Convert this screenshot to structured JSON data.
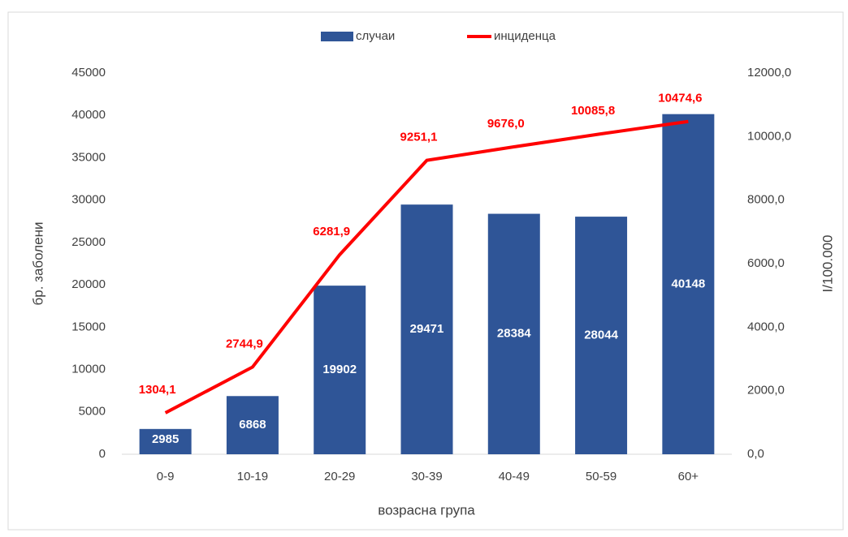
{
  "chart_data": {
    "type": "bar",
    "x_label": "возрасна група",
    "y_label": "бр. заболени",
    "y2_label": "I/100.000",
    "categories": [
      "0-9",
      "10-19",
      "20-29",
      "30-39",
      "40-49",
      "50-59",
      "60+"
    ],
    "series": [
      {
        "name": "случаи",
        "type": "bar",
        "color": "#2f5597",
        "values": [
          2985,
          6868,
          19902,
          29471,
          28384,
          28044,
          40148
        ]
      },
      {
        "name": "инциденца",
        "type": "line",
        "axis": "y2",
        "color": "#ff0000",
        "values": [
          1304.1,
          2744.9,
          6281.9,
          9251.1,
          9676.0,
          10085.8,
          10474.6
        ],
        "value_labels": [
          "1304,1",
          "2744,9",
          "6281,9",
          "9251,1",
          "9676,0",
          "10085,8",
          "10474,6"
        ]
      }
    ],
    "ylim": [
      0,
      45000
    ],
    "yticks": [
      0,
      5000,
      10000,
      15000,
      20000,
      25000,
      30000,
      35000,
      40000,
      45000
    ],
    "y2lim": [
      0,
      12000
    ],
    "y2ticks": [
      {
        "value": 0,
        "label": "0,0"
      },
      {
        "value": 2000,
        "label": "2000,0"
      },
      {
        "value": 4000,
        "label": "4000,0"
      },
      {
        "value": 6000,
        "label": "6000,0"
      },
      {
        "value": 8000,
        "label": "8000,0"
      },
      {
        "value": 10000,
        "label": "10000,0"
      },
      {
        "value": 12000,
        "label": "12000,0"
      }
    ],
    "legend": "top",
    "grid": false
  }
}
